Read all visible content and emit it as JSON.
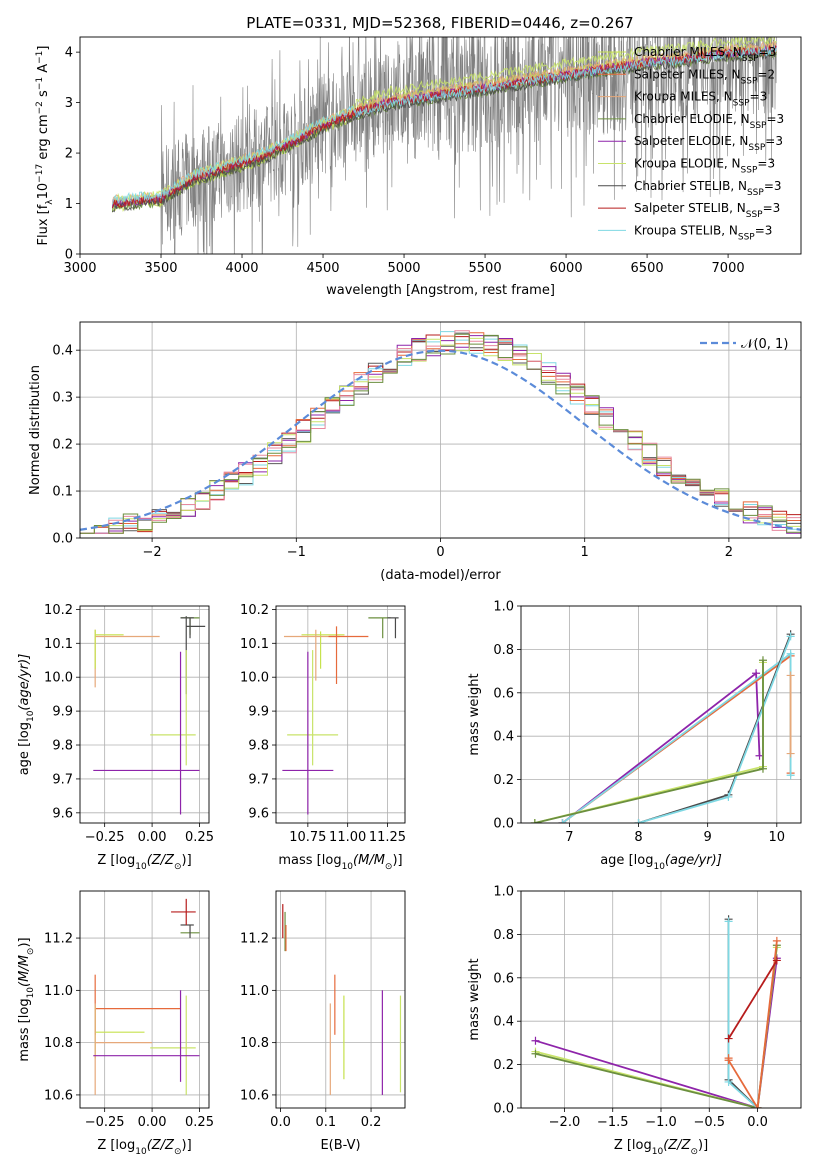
{
  "figure_title": "PLATE=0331, MJD=52368, FIBERID=0446, z=0.267",
  "colors": {
    "data": "#808080",
    "models": [
      "#c6e24e",
      "#e66a3c",
      "#e6a87a",
      "#6b8f3f",
      "#8e24aa",
      "#c8e36a",
      "#4a4a4a",
      "#b71c1c",
      "#7fd8e3"
    ],
    "normal": "#5b8bd9",
    "hist": [
      "#5a5a5a",
      "#b71c1c",
      "#7fd8e3",
      "#e66a3c",
      "#8e24aa",
      "#c8e36a",
      "#e88aa0",
      "#6b8f3f"
    ]
  },
  "chart_data": [
    {
      "id": "spectrum",
      "type": "line",
      "xlabel": "wavelength [Angstrom, rest frame]",
      "ylabel": "Flux [f",
      "ylabel_sub": "λ",
      "ylabel_rest": "10",
      "ylabel_sup": "−17",
      "ylabel_units": " erg cm",
      "ylabel_sup2": "−2",
      "ylabel_s": " s",
      "ylabel_sup3": "−1",
      "ylabel_A": " A",
      "ylabel_sup4": "−1",
      "ylabel_end": "]",
      "xlim": [
        3000,
        7450
      ],
      "ylim": [
        0,
        4.3
      ],
      "xticks": [
        3000,
        3500,
        4000,
        4500,
        5000,
        5500,
        6000,
        6500,
        7000
      ],
      "yticks": [
        0,
        1,
        2,
        3,
        4
      ],
      "legend_position": "top-right",
      "legend": [
        {
          "name": "Chabrier MILES, N",
          "sub": "SSP",
          "tail": "=3"
        },
        {
          "name": "Salpeter MILES, N",
          "sub": "SSP",
          "tail": "=2"
        },
        {
          "name": "Kroupa MILES, N",
          "sub": "SSP",
          "tail": "=3"
        },
        {
          "name": "Chabrier ELODIE, N",
          "sub": "SSP",
          "tail": "=3"
        },
        {
          "name": "Salpeter ELODIE, N",
          "sub": "SSP",
          "tail": "=3"
        },
        {
          "name": "Kroupa ELODIE, N",
          "sub": "SSP",
          "tail": "=3"
        },
        {
          "name": "Chabrier STELIB, N",
          "sub": "SSP",
          "tail": "=3"
        },
        {
          "name": "Salpeter STELIB, N",
          "sub": "SSP",
          "tail": "=3"
        },
        {
          "name": "Kroupa STELIB, N",
          "sub": "SSP",
          "tail": "=3"
        }
      ],
      "model_curve": {
        "x": [
          3200,
          3500,
          3700,
          3900,
          4100,
          4300,
          4500,
          4700,
          4900,
          5100,
          5300,
          5500,
          5700,
          5900,
          6100,
          6300,
          6500,
          6700,
          6900,
          7100,
          7300
        ],
        "y": [
          1.0,
          1.1,
          1.5,
          1.7,
          1.9,
          2.2,
          2.55,
          2.8,
          3.0,
          3.1,
          3.2,
          3.3,
          3.4,
          3.5,
          3.6,
          3.7,
          3.8,
          3.85,
          3.95,
          4.0,
          4.05
        ]
      }
    },
    {
      "id": "residuals",
      "type": "histogram",
      "xlabel": "(data-model)/error",
      "ylabel": "Normed distribution",
      "xlim": [
        -2.5,
        2.5
      ],
      "ylim": [
        0,
        0.46
      ],
      "xticks": [
        -2,
        -1,
        0,
        1,
        2
      ],
      "yticks": [
        0.0,
        0.1,
        0.2,
        0.3,
        0.4
      ],
      "xtick_labels": [
        "−2",
        "−1",
        "0",
        "1",
        "2"
      ],
      "ytick_labels": [
        "0.0",
        "0.1",
        "0.2",
        "0.3",
        "0.4"
      ],
      "legend": "𝒩(0, 1)",
      "legend_position": "top-right",
      "bin_width": 0.1
    },
    {
      "id": "age-vs-Z",
      "type": "errorbar",
      "xlabel": "Z [log",
      "xlabel_sub": "10",
      "xlabel_rest": "(Z/Z",
      "xlabel_sub2": "⊙",
      "xlabel_end": ")]",
      "ylabel": "age  [log",
      "ylabel_sub": "10",
      "ylabel_rest": "(age/yr)]",
      "xlim": [
        -0.38,
        0.3
      ],
      "ylim": [
        9.57,
        10.21
      ],
      "xticks": [
        -0.25,
        0.0,
        0.25
      ],
      "xtick_labels": [
        "−0.25",
        "0.00",
        "0.25"
      ],
      "yticks": [
        9.6,
        9.7,
        9.8,
        9.9,
        10.0,
        10.1,
        10.2
      ],
      "ytick_labels": [
        "9.6",
        "9.7",
        "9.8",
        "9.9",
        "10.0",
        "10.1",
        "10.2"
      ],
      "points": [
        {
          "x": -0.3,
          "y": 10.12,
          "xerr": [
            0.0,
            0.34
          ],
          "yerr": [
            0.15,
            0.02
          ],
          "c": 2
        },
        {
          "x": -0.3,
          "y": 10.125,
          "xerr": [
            0.0,
            0.15
          ],
          "yerr": [
            0.1,
            0.015
          ],
          "c": 0
        },
        {
          "x": 0.18,
          "y": 10.15,
          "xerr": [
            0.0,
            0.1
          ],
          "yerr": [
            0.2,
            0.03
          ],
          "c": 6
        },
        {
          "x": 0.2,
          "y": 10.175,
          "xerr": [
            0.05,
            0.05
          ],
          "yerr": [
            0.05,
            0.0
          ],
          "c": 3
        },
        {
          "x": 0.2,
          "y": 10.175,
          "xerr": [
            0.05,
            0.02
          ],
          "yerr": [
            0.06,
            0.0
          ],
          "c": 6
        },
        {
          "x": 0.18,
          "y": 9.83,
          "xerr": [
            0.19,
            0.05
          ],
          "yerr": [
            0.09,
            0.25
          ],
          "c": 5
        },
        {
          "x": 0.15,
          "y": 9.725,
          "xerr": [
            0.46,
            0.1
          ],
          "yerr": [
            0.13,
            0.35
          ],
          "c": 4
        }
      ]
    },
    {
      "id": "age-vs-mass",
      "type": "errorbar",
      "xlabel": "mass [log",
      "xlabel_sub": "10",
      "xlabel_rest": "(M/M",
      "xlabel_sub2": "⊙",
      "xlabel_end": ")]",
      "xlim": [
        10.55,
        11.36
      ],
      "ylim": [
        9.57,
        10.21
      ],
      "xticks": [
        10.75,
        11.0,
        11.25
      ],
      "xtick_labels": [
        "10.75",
        "11.00",
        "11.25"
      ],
      "yticks": [
        9.6,
        9.7,
        9.8,
        9.9,
        10.0,
        10.1,
        10.2
      ],
      "ytick_labels": [
        "9.6",
        "9.7",
        "9.8",
        "9.9",
        "10.0",
        "10.1",
        "10.2"
      ],
      "points": [
        {
          "x": 10.83,
          "y": 10.125,
          "xerr": [
            0.12,
            0.15
          ],
          "yerr": [
            0.1,
            0.01
          ],
          "c": 0
        },
        {
          "x": 10.8,
          "y": 10.12,
          "xerr": [
            0.2,
            0.15
          ],
          "yerr": [
            0.13,
            0.02
          ],
          "c": 2
        },
        {
          "x": 10.93,
          "y": 10.12,
          "xerr": [
            0.05,
            0.2
          ],
          "yerr": [
            0.14,
            0.03
          ],
          "c": 1
        },
        {
          "x": 11.22,
          "y": 10.175,
          "xerr": [
            0.09,
            0.05
          ],
          "yerr": [
            0.06,
            0.0
          ],
          "c": 3
        },
        {
          "x": 11.3,
          "y": 10.175,
          "xerr": [
            0.05,
            0.02
          ],
          "yerr": [
            0.06,
            0.0
          ],
          "c": 6
        },
        {
          "x": 10.78,
          "y": 9.83,
          "xerr": [
            0.16,
            0.16
          ],
          "yerr": [
            0.09,
            0.25
          ],
          "c": 5
        },
        {
          "x": 10.75,
          "y": 9.725,
          "xerr": [
            0.16,
            0.16
          ],
          "yerr": [
            0.13,
            0.35
          ],
          "c": 4
        }
      ]
    },
    {
      "id": "weight-vs-age",
      "type": "line",
      "xlabel": "age  [log",
      "xlabel_sub": "10",
      "xlabel_rest": "(age/yr)]",
      "ylabel": "mass weight",
      "xlim": [
        6.3,
        10.35
      ],
      "ylim": [
        0,
        1.0
      ],
      "xticks": [
        7,
        8,
        9,
        10
      ],
      "xtick_labels": [
        "7",
        "8",
        "9",
        "10"
      ],
      "yticks": [
        0.0,
        0.2,
        0.4,
        0.6,
        0.8,
        1.0
      ],
      "ytick_labels": [
        "0.0",
        "0.2",
        "0.4",
        "0.6",
        "0.8",
        "1.0"
      ],
      "series": [
        {
          "c": 4,
          "x": [
            6.9,
            9.7,
            9.75
          ],
          "y": [
            0.0,
            0.69,
            0.31
          ]
        },
        {
          "c": 1,
          "x": [
            6.9,
            10.2,
            10.2
          ],
          "y": [
            0.0,
            0.77,
            0.23
          ]
        },
        {
          "c": 8,
          "x": [
            6.9,
            10.2,
            10.2
          ],
          "y": [
            0.0,
            0.78,
            0.22
          ]
        },
        {
          "c": 6,
          "x": [
            8.0,
            9.3,
            10.2
          ],
          "y": [
            0.0,
            0.13,
            0.87
          ]
        },
        {
          "c": 8,
          "x": [
            8.0,
            9.3,
            10.2
          ],
          "y": [
            0.0,
            0.12,
            0.86
          ]
        },
        {
          "c": 5,
          "x": [
            6.5,
            9.8,
            9.8
          ],
          "y": [
            0.0,
            0.26,
            0.74
          ]
        },
        {
          "c": 3,
          "x": [
            6.5,
            9.8,
            9.8
          ],
          "y": [
            0.0,
            0.25,
            0.75
          ]
        },
        {
          "c": 2,
          "x": [
            10.2,
            10.2
          ],
          "y": [
            0.68,
            0.32
          ]
        }
      ]
    },
    {
      "id": "mass-vs-Z",
      "type": "errorbar",
      "xlabel": "Z [log",
      "xlabel_sub": "10",
      "xlabel_rest": "(Z/Z",
      "xlabel_sub2": "⊙",
      "xlabel_end": ")]",
      "ylabel": "mass [log",
      "ylabel_sub": "10",
      "ylabel_rest": "(M/M",
      "ylabel_sub2": "⊙",
      "ylabel_end": ")]",
      "xlim": [
        -0.38,
        0.3
      ],
      "ylim": [
        10.55,
        11.38
      ],
      "xticks": [
        -0.25,
        0.0,
        0.25
      ],
      "xtick_labels": [
        "−0.25",
        "0.00",
        "0.25"
      ],
      "yticks": [
        10.6,
        10.8,
        11.0,
        11.2
      ],
      "ytick_labels": [
        "10.6",
        "10.8",
        "11.0",
        "11.2"
      ],
      "points": [
        {
          "x": -0.3,
          "y": 10.93,
          "xerr": [
            0.0,
            0.45
          ],
          "yerr": [
            0.1,
            0.13
          ],
          "c": 1
        },
        {
          "x": -0.3,
          "y": 10.84,
          "xerr": [
            0.0,
            0.26
          ],
          "yerr": [
            0.1,
            0.1
          ],
          "c": 0
        },
        {
          "x": -0.3,
          "y": 10.8,
          "xerr": [
            0.0,
            0.3
          ],
          "yerr": [
            0.2,
            0.15
          ],
          "c": 2
        },
        {
          "x": 0.18,
          "y": 10.78,
          "xerr": [
            0.19,
            0.05
          ],
          "yerr": [
            0.18,
            0.2
          ],
          "c": 5
        },
        {
          "x": 0.15,
          "y": 10.75,
          "xerr": [
            0.46,
            0.1
          ],
          "yerr": [
            0.1,
            0.25
          ],
          "c": 4
        },
        {
          "x": 0.2,
          "y": 11.22,
          "xerr": [
            0.05,
            0.05
          ],
          "yerr": [
            0.0,
            0.0
          ],
          "c": 3
        },
        {
          "x": 0.2,
          "y": 11.25,
          "xerr": [
            0.05,
            0.02
          ],
          "yerr": [
            0.05,
            0.0
          ],
          "c": 6
        },
        {
          "x": 0.18,
          "y": 11.3,
          "xerr": [
            0.08,
            0.05
          ],
          "yerr": [
            0.05,
            0.05
          ],
          "c": 7
        }
      ]
    },
    {
      "id": "mass-vs-EBV",
      "type": "errorbar",
      "xlabel": "E(B-V)",
      "xlim": [
        -0.01,
        0.275
      ],
      "ylim": [
        10.55,
        11.38
      ],
      "xticks": [
        0.0,
        0.1,
        0.2
      ],
      "xtick_labels": [
        "0.0",
        "0.1",
        "0.2"
      ],
      "yticks": [
        10.6,
        10.8,
        11.0,
        11.2
      ],
      "ytick_labels": [
        "10.6",
        "10.8",
        "11.0",
        "11.2"
      ],
      "points": [
        {
          "x": 0.01,
          "y": 11.25,
          "xerr": [
            0.0,
            0.0
          ],
          "yerr": [
            0.1,
            0.05
          ],
          "c": 3
        },
        {
          "x": 0.005,
          "y": 11.28,
          "xerr": [
            0.0,
            0.0
          ],
          "yerr": [
            0.08,
            0.05
          ],
          "c": 7
        },
        {
          "x": 0.012,
          "y": 11.22,
          "xerr": [
            0.0,
            0.0
          ],
          "yerr": [
            0.07,
            0.03
          ],
          "c": 1
        },
        {
          "x": 0.11,
          "y": 10.8,
          "xerr": [
            0.0,
            0.0
          ],
          "yerr": [
            0.2,
            0.15
          ],
          "c": 2
        },
        {
          "x": 0.12,
          "y": 10.93,
          "xerr": [
            0.0,
            0.0
          ],
          "yerr": [
            0.1,
            0.13
          ],
          "c": 1
        },
        {
          "x": 0.14,
          "y": 10.84,
          "xerr": [
            0.0,
            0.0
          ],
          "yerr": [
            0.18,
            0.14
          ],
          "c": 0
        },
        {
          "x": 0.225,
          "y": 10.8,
          "xerr": [
            0.0,
            0.0
          ],
          "yerr": [
            0.2,
            0.2
          ],
          "c": 4
        },
        {
          "x": 0.265,
          "y": 10.78,
          "xerr": [
            0.0,
            0.0
          ],
          "yerr": [
            0.17,
            0.2
          ],
          "c": 5
        }
      ]
    },
    {
      "id": "weight-vs-Z",
      "type": "line",
      "xlabel": "Z [log",
      "xlabel_sub": "10",
      "xlabel_rest": "(Z/Z",
      "xlabel_sub2": "⊙",
      "xlabel_end": ")]",
      "ylabel": "mass weight",
      "xlim": [
        -2.45,
        0.45
      ],
      "ylim": [
        0,
        1.0
      ],
      "xticks": [
        -2.0,
        -1.5,
        -1.0,
        -0.5,
        0.0
      ],
      "xtick_labels": [
        "−2.0",
        "−1.5",
        "−1.0",
        "−0.5",
        "0.0"
      ],
      "yticks": [
        0.0,
        0.2,
        0.4,
        0.6,
        0.8,
        1.0
      ],
      "ytick_labels": [
        "0.0",
        "0.2",
        "0.4",
        "0.6",
        "0.8",
        "1.0"
      ],
      "series": [
        {
          "c": 4,
          "x": [
            -2.3,
            0.0,
            0.2
          ],
          "y": [
            0.31,
            0.0,
            0.69
          ]
        },
        {
          "c": 5,
          "x": [
            -2.3,
            0.0,
            0.2
          ],
          "y": [
            0.26,
            0.0,
            0.74
          ]
        },
        {
          "c": 3,
          "x": [
            -2.3,
            0.0,
            0.2
          ],
          "y": [
            0.25,
            0.0,
            0.75
          ]
        },
        {
          "c": 6,
          "x": [
            -0.3,
            -0.3,
            0.0
          ],
          "y": [
            0.87,
            0.13,
            0.0
          ]
        },
        {
          "c": 8,
          "x": [
            -0.3,
            -0.3,
            0.0
          ],
          "y": [
            0.86,
            0.12,
            0.0
          ]
        },
        {
          "c": 1,
          "x": [
            -0.3,
            -0.3,
            0.0,
            0.2
          ],
          "y": [
            0.23,
            0.22,
            0.0,
            0.77
          ]
        },
        {
          "c": 7,
          "x": [
            -0.3,
            0.2
          ],
          "y": [
            0.32,
            0.68
          ]
        }
      ]
    }
  ]
}
